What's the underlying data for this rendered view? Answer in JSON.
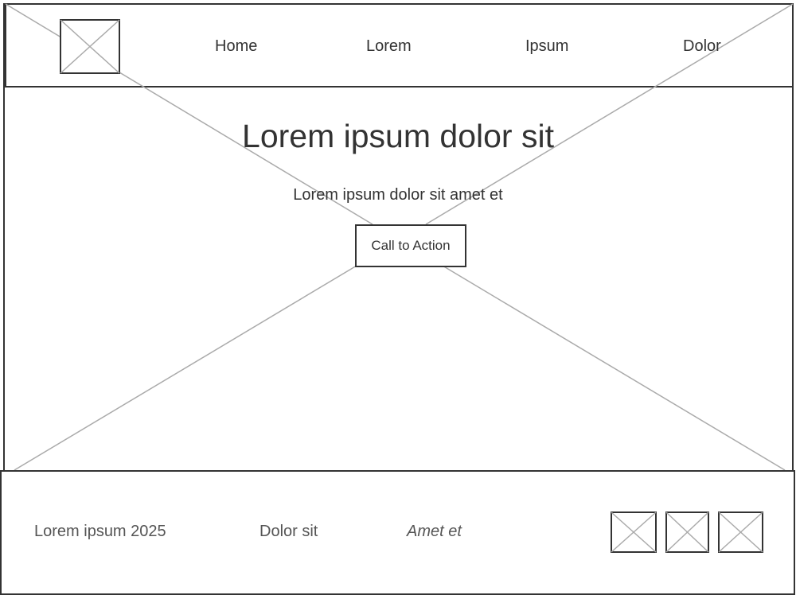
{
  "header": {
    "logo_icon": "image-placeholder-icon",
    "nav": [
      {
        "label": "Home"
      },
      {
        "label": "Lorem"
      },
      {
        "label": "Ipsum"
      },
      {
        "label": "Dolor"
      }
    ]
  },
  "hero": {
    "background_icon": "image-placeholder-icon",
    "title": "Lorem ipsum dolor sit",
    "subtitle": "Lorem ipsum dolor sit amet et",
    "cta_label": "Call to Action"
  },
  "footer": {
    "copyright": "Lorem ipsum 2025",
    "link_1": "Dolor sit",
    "link_2": "Amet et",
    "social_icons": [
      "image-placeholder-icon",
      "image-placeholder-icon",
      "image-placeholder-icon"
    ]
  },
  "colors": {
    "stroke": "#333333",
    "placeholder_cross": "#aaaaaa"
  }
}
